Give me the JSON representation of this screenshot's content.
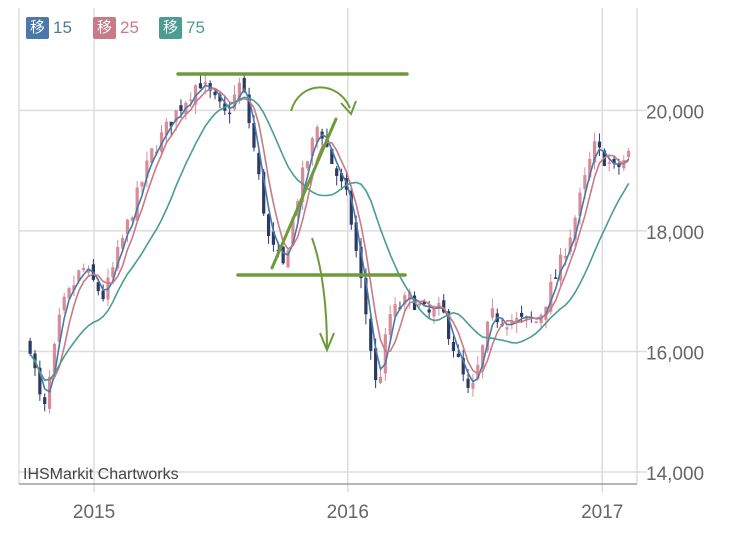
{
  "chart_data": {
    "type": "candlestick",
    "legend": [
      {
        "tag": "移",
        "period": "15",
        "color": "#4a78a8"
      },
      {
        "tag": "移",
        "period": "25",
        "color": "#c87a86"
      },
      {
        "tag": "移",
        "period": "75",
        "color": "#4b9c92"
      }
    ],
    "watermark": "IHSMarkit Chartworks",
    "x_ticks": [
      "2015",
      "2016",
      "2017"
    ],
    "y_ticks": [
      "14,000",
      "16,000",
      "18,000",
      "20,000"
    ],
    "ylim": [
      13800,
      21700
    ],
    "price_path": [
      [
        "2014-10-01",
        16100
      ],
      [
        "2014-10-20",
        14900
      ],
      [
        "2014-11-15",
        16700
      ],
      [
        "2014-12-15",
        17400
      ],
      [
        "2015-01-15",
        16900
      ],
      [
        "2015-02-15",
        18000
      ],
      [
        "2015-03-25",
        19300
      ],
      [
        "2015-04-25",
        19900
      ],
      [
        "2015-06-01",
        20500
      ],
      [
        "2015-07-10",
        19900
      ],
      [
        "2015-08-01",
        20500
      ],
      [
        "2015-08-20",
        19300
      ],
      [
        "2015-09-10",
        17800
      ],
      [
        "2015-09-30",
        17400
      ],
      [
        "2015-10-25",
        18800
      ],
      [
        "2015-11-20",
        19800
      ],
      [
        "2015-12-10",
        19100
      ],
      [
        "2016-01-01",
        18500
      ],
      [
        "2016-01-25",
        16800
      ],
      [
        "2016-02-12",
        15300
      ],
      [
        "2016-03-01",
        16600
      ],
      [
        "2016-03-31",
        16900
      ],
      [
        "2016-04-25",
        16600
      ],
      [
        "2016-05-15",
        16700
      ],
      [
        "2016-06-25",
        15200
      ],
      [
        "2016-07-25",
        16600
      ],
      [
        "2016-08-25",
        16500
      ],
      [
        "2016-09-30",
        16500
      ],
      [
        "2016-10-31",
        17400
      ],
      [
        "2016-11-20",
        18100
      ],
      [
        "2016-12-20",
        19400
      ],
      [
        "2017-01-20",
        19000
      ],
      [
        "2017-02-10",
        19300
      ]
    ]
  }
}
